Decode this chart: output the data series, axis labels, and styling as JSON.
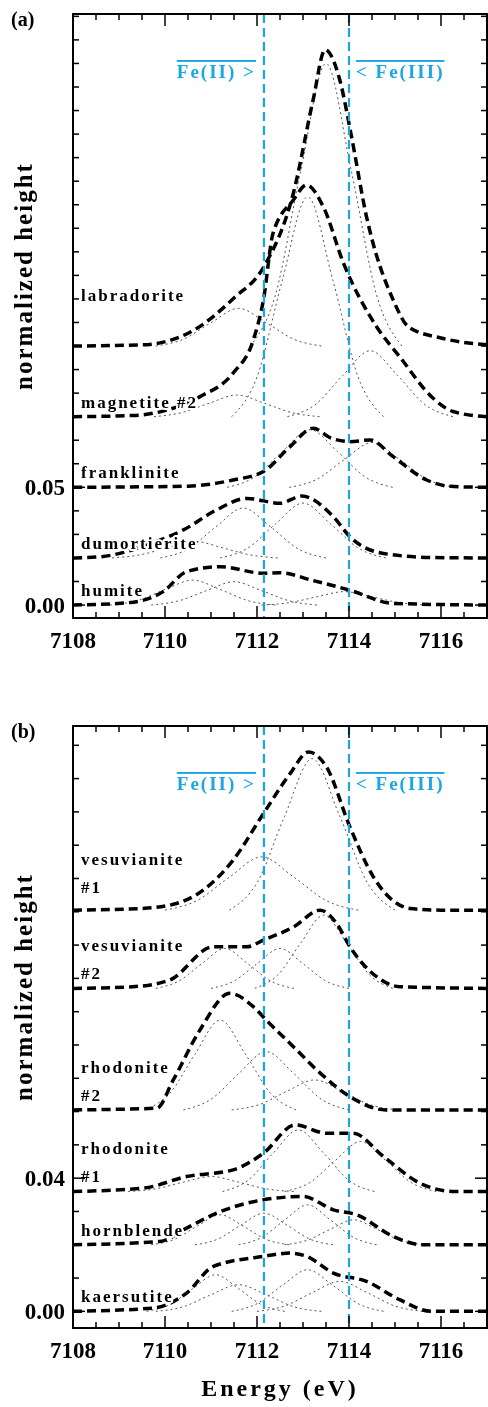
{
  "chart_data": [
    {
      "type": "line",
      "title": "(a)",
      "ylabel": "normalized height",
      "xlim": [
        7108,
        7117
      ],
      "xticks": [
        7108,
        {
          "value": 7108.5,
          "label": null
        },
        {
          "value": 7109,
          "label": null
        },
        {
          "value": 7109.5,
          "label": null
        },
        7110,
        {
          "value": 7110.5,
          "label": null
        },
        {
          "value": 7111,
          "label": null
        },
        {
          "value": 7111.5,
          "label": null
        },
        7112,
        {
          "value": 7112.5,
          "label": null
        },
        {
          "value": 7113,
          "label": null
        },
        {
          "value": 7113.5,
          "label": null
        },
        7114,
        {
          "value": 7114.5,
          "label": null
        },
        {
          "value": 7115,
          "label": null
        },
        {
          "value": 7115.5,
          "label": null
        },
        7116,
        {
          "value": 7116.5,
          "label": null
        }
      ],
      "ylim": [
        -0.0055,
        0.251
      ],
      "yticks": [
        {
          "value": 0,
          "label": "0.00"
        },
        {
          "value": 0.01,
          "label": null
        },
        {
          "value": 0.02,
          "label": null
        },
        {
          "value": 0.03,
          "label": null
        },
        {
          "value": 0.04,
          "label": null
        },
        {
          "value": 0.05,
          "label": "0.05"
        },
        {
          "value": 0.06,
          "label": null
        },
        {
          "value": 0.07,
          "label": null
        },
        {
          "value": 0.08,
          "label": null
        },
        {
          "value": 0.09,
          "label": null
        },
        {
          "value": 0.1,
          "label": null
        },
        {
          "value": 0.11,
          "label": null
        },
        {
          "value": 0.12,
          "label": null
        },
        {
          "value": 0.13,
          "label": null
        },
        {
          "value": 0.14,
          "label": null
        },
        {
          "value": 0.15,
          "label": null
        },
        {
          "value": 0.16,
          "label": null
        },
        {
          "value": 0.17,
          "label": null
        },
        {
          "value": 0.18,
          "label": null
        },
        {
          "value": 0.19,
          "label": null
        },
        {
          "value": 0.2,
          "label": null
        },
        {
          "value": 0.21,
          "label": null
        },
        {
          "value": 0.22,
          "label": null
        },
        {
          "value": 0.23,
          "label": null
        },
        {
          "value": 0.24,
          "label": null
        },
        {
          "value": 0.25,
          "label": null
        }
      ],
      "ref_lines": [
        {
          "axis": "x",
          "value": 7112.15,
          "color": "#1aa7e0",
          "line_style": "dashed"
        },
        {
          "axis": "x",
          "value": 7114.0,
          "color": "#1aa7e0",
          "line_style": "dashed"
        }
      ],
      "annotations": [
        "Fe(II) >",
        "< Fe(III)"
      ],
      "series": [
        {
          "name": "labradorite",
          "color": "#000000",
          "line_style": "dashed",
          "x": [
            7108,
            7109.5,
            7110.04,
            7110.6,
            7111.5,
            7112.15,
            7112.79,
            7113.22,
            7113.48,
            7113.8,
            7114.04,
            7114.38,
            7114.96,
            7115.3,
            7116,
            7117
          ],
          "values": [
            0.11,
            0.1105,
            0.112,
            0.1164,
            0.1304,
            0.1437,
            0.1749,
            0.2145,
            0.2358,
            0.223,
            0.2004,
            0.165,
            0.1296,
            0.118,
            0.1134,
            0.1105
          ]
        },
        {
          "name": "magnetite #2",
          "color": "#000000",
          "line_style": "dashed",
          "x": [
            7108,
            7109.3,
            7110.04,
            7110.76,
            7111.48,
            7111.92,
            7112.14,
            7112.35,
            7112.79,
            7113.08,
            7113.44,
            7113.88,
            7114.6,
            7115.1,
            7115.83,
            7116.26,
            7117
          ],
          "values": [
            0.08,
            0.0805,
            0.0828,
            0.0885,
            0.0985,
            0.1126,
            0.1296,
            0.158,
            0.172,
            0.1784,
            0.1692,
            0.1452,
            0.1182,
            0.1055,
            0.0878,
            0.0822,
            0.08
          ]
        },
        {
          "name": "franklinite",
          "color": "#000000",
          "line_style": "dashed",
          "x": [
            7108,
            7110.5,
            7111.48,
            7112.14,
            7112.72,
            7113.22,
            7113.6,
            7114.02,
            7114.46,
            7114.96,
            7115.69,
            7116.2,
            7117
          ],
          "values": [
            0.05,
            0.0505,
            0.0531,
            0.0567,
            0.0673,
            0.0751,
            0.071,
            0.0694,
            0.0701,
            0.063,
            0.0531,
            0.0504,
            0.05
          ]
        },
        {
          "name": "dumortierite",
          "color": "#000000",
          "line_style": "dashed",
          "x": [
            7108,
            7108.59,
            7109.67,
            7110.4,
            7111.12,
            7111.78,
            7112.5,
            7112.97,
            7113.66,
            7114.02,
            7114.75,
            7115.8,
            7117
          ],
          "values": [
            0.02,
            0.0205,
            0.026,
            0.0319,
            0.0404,
            0.0453,
            0.0432,
            0.0463,
            0.0375,
            0.029,
            0.0219,
            0.0202,
            0.02
          ]
        },
        {
          "name": "humite",
          "color": "#000000",
          "line_style": "dashed",
          "x": [
            7108,
            7109.2,
            7109.96,
            7110.47,
            7111.2,
            7112.14,
            7112.5,
            7113.2,
            7114,
            7114.96,
            7117
          ],
          "values": [
            0,
            0.001,
            0.0057,
            0.0142,
            0.0163,
            0.0135,
            0.0137,
            0.0105,
            0.0064,
            0.0007,
            0
          ]
        },
        {
          "color": "#555555",
          "line_style": "dotted",
          "x": [
            7109.8,
            7110.4,
            7111,
            7111.6,
            7112.2,
            7112.8,
            7113.4
          ],
          "values": [
            0.11,
            0.1129,
            0.1199,
            0.126,
            0.1199,
            0.1129,
            0.11
          ]
        },
        {
          "color": "#555555",
          "line_style": "dotted",
          "x": [
            7111.85,
            7112.4,
            7112.95,
            7113.5,
            7114.05,
            7114.6,
            7115.15
          ],
          "values": [
            0.11,
            0.1316,
            0.1844,
            0.23,
            0.1844,
            0.1316,
            0.11
          ]
        },
        {
          "color": "#555555",
          "line_style": "dotted",
          "x": [
            7109.76,
            7110.36,
            7110.96,
            7111.56,
            7112.16,
            7112.76,
            7113.36
          ],
          "values": [
            0.08,
            0.0817,
            0.0857,
            0.0892,
            0.0857,
            0.0817,
            0.08
          ]
        },
        {
          "color": "#555555",
          "line_style": "dotted",
          "x": [
            7111.45,
            7112,
            7112.55,
            7113.1,
            7113.65,
            7114.2,
            7114.75
          ],
          "values": [
            0.08,
            0.0968,
            0.1379,
            0.1734,
            0.1379,
            0.0968,
            0.08
          ]
        },
        {
          "color": "#555555",
          "line_style": "dotted",
          "x": [
            7112.66,
            7113.26,
            7113.86,
            7114.46,
            7115.06,
            7115.66,
            7116.26
          ],
          "values": [
            0.08,
            0.085,
            0.0974,
            0.108,
            0.0974,
            0.085,
            0.08
          ]
        },
        {
          "color": "#555555",
          "line_style": "dotted",
          "x": [
            7111.35,
            7111.95,
            7112.55,
            7113.15,
            7113.75,
            7114.35,
            7114.95
          ],
          "values": [
            0.05,
            0.0544,
            0.0652,
            0.0745,
            0.0652,
            0.0544,
            0.05
          ]
        },
        {
          "color": "#555555",
          "line_style": "dotted",
          "x": [
            7112.7,
            7113.3,
            7113.9,
            7114.5,
            7115.1,
            7115.7,
            7116.3
          ],
          "values": [
            0.05,
            0.0534,
            0.0618,
            0.069,
            0.0618,
            0.0534,
            0.05
          ]
        },
        {
          "color": "#555555",
          "line_style": "dotted",
          "x": [
            7108.85,
            7109.45,
            7110.05,
            7110.65,
            7111.25,
            7111.85,
            7112.45
          ],
          "values": [
            0.02,
            0.0213,
            0.0243,
            0.027,
            0.0243,
            0.0213,
            0.02
          ]
        },
        {
          "color": "#555555",
          "line_style": "dotted",
          "x": [
            7109.9,
            7110.5,
            7111.1,
            7111.7,
            7112.3,
            7112.9,
            7113.5
          ],
          "values": [
            0.02,
            0.0238,
            0.0331,
            0.0412,
            0.0331,
            0.0238,
            0.02
          ]
        },
        {
          "color": "#555555",
          "line_style": "dotted",
          "x": [
            7111.2,
            7111.8,
            7112.4,
            7113,
            7113.6,
            7114.2,
            7114.8
          ],
          "values": [
            0.02,
            0.0242,
            0.0344,
            0.0433,
            0.0344,
            0.0242,
            0.02
          ]
        },
        {
          "color": "#555555",
          "line_style": "dotted",
          "x": [
            7108.8,
            7109.4,
            7110,
            7110.6,
            7111.2,
            7111.8,
            7112.4
          ],
          "values": [
            0,
            0.0019,
            0.0066,
            0.0106,
            0.0066,
            0.0019,
            0
          ]
        },
        {
          "color": "#555555",
          "line_style": "dotted",
          "x": [
            7109.7,
            7110.3,
            7110.9,
            7111.5,
            7112.1,
            7112.7,
            7113.3
          ],
          "values": [
            0,
            0.0018,
            0.0061,
            0.0099,
            0.0061,
            0.0018,
            0
          ]
        },
        {
          "color": "#555555",
          "line_style": "dotted",
          "x": [
            7112.1,
            7112.7,
            7113.3,
            7113.9,
            7114.5,
            7115.1,
            7115.7
          ],
          "values": [
            0,
            0.001,
            0.0035,
            0.0057,
            0.0035,
            0.001,
            0
          ]
        }
      ]
    },
    {
      "type": "line",
      "title": "(b)",
      "xlabel": "Energy (eV)",
      "ylabel": "normalized height",
      "xlim": [
        7108,
        7117
      ],
      "xticks": [
        7108,
        {
          "value": 7108.5,
          "label": null
        },
        {
          "value": 7109,
          "label": null
        },
        {
          "value": 7109.5,
          "label": null
        },
        7110,
        {
          "value": 7110.5,
          "label": null
        },
        {
          "value": 7111,
          "label": null
        },
        {
          "value": 7111.5,
          "label": null
        },
        7112,
        {
          "value": 7112.5,
          "label": null
        },
        {
          "value": 7113,
          "label": null
        },
        {
          "value": 7113.5,
          "label": null
        },
        7114,
        {
          "value": 7114.5,
          "label": null
        },
        {
          "value": 7115,
          "label": null
        },
        {
          "value": 7115.5,
          "label": null
        },
        7116,
        {
          "value": 7116.5,
          "label": null
        }
      ],
      "ylim": [
        -0.005,
        0.1758
      ],
      "yticks": [
        {
          "value": 0,
          "label": "0.00"
        },
        {
          "value": 0.01,
          "label": null
        },
        {
          "value": 0.02,
          "label": null
        },
        {
          "value": 0.03,
          "label": null
        },
        {
          "value": 0.04,
          "label": "0.04"
        },
        {
          "value": 0.05,
          "label": null
        },
        {
          "value": 0.06,
          "label": null
        },
        {
          "value": 0.07,
          "label": null
        },
        {
          "value": 0.08,
          "label": null
        },
        {
          "value": 0.09,
          "label": null
        },
        {
          "value": 0.1,
          "label": null
        },
        {
          "value": 0.11,
          "label": null
        },
        {
          "value": 0.12,
          "label": null
        },
        {
          "value": 0.13,
          "label": null
        },
        {
          "value": 0.14,
          "label": null
        },
        {
          "value": 0.15,
          "label": null
        },
        {
          "value": 0.16,
          "label": null
        },
        {
          "value": 0.17,
          "label": null
        }
      ],
      "ref_lines": [
        {
          "axis": "x",
          "value": 7112.15,
          "color": "#1aa7e0",
          "line_style": "dashed"
        },
        {
          "axis": "x",
          "value": 7114.0,
          "color": "#1aa7e0",
          "line_style": "dashed"
        }
      ],
      "annotations": [
        "Fe(II) >",
        "< Fe(III)"
      ],
      "series": [
        {
          "name": "vesuvianite #1",
          "color": "#000000",
          "line_style": "dashed",
          "x": [
            7108,
            7109.5,
            7110.25,
            7110.83,
            7111.48,
            7112.14,
            7112.72,
            7113.12,
            7113.51,
            7114.02,
            7114.53,
            7115.33,
            7116,
            7117
          ],
          "values": [
            0.1205,
            0.121,
            0.1225,
            0.1265,
            0.1355,
            0.1495,
            0.1615,
            0.168,
            0.1635,
            0.1455,
            0.1305,
            0.121,
            0.1205,
            0.1205
          ]
        },
        {
          "name": "vesuvianite #2",
          "color": "#000000",
          "line_style": "dashed",
          "x": [
            7108,
            7109.3,
            7110.1,
            7111.05,
            7111.78,
            7112.14,
            7112.8,
            7113.37,
            7113.73,
            7114.02,
            7114.6,
            7115.1,
            7117
          ],
          "values": [
            0.097,
            0.0975,
            0.0995,
            0.1095,
            0.1095,
            0.1115,
            0.1155,
            0.1205,
            0.1165,
            0.1095,
            0.1005,
            0.0975,
            0.097
          ]
        },
        {
          "name": "rhodonite #2",
          "color": "#000000",
          "line_style": "dashed",
          "x": [
            7108,
            7109.82,
            7110.18,
            7110.76,
            7111.41,
            7111.92,
            7112.2,
            7112.79,
            7113.3,
            7114.02,
            7114.8,
            7117
          ],
          "values": [
            0.0605,
            0.061,
            0.0695,
            0.0845,
            0.0955,
            0.0915,
            0.0875,
            0.0795,
            0.0725,
            0.0645,
            0.0605,
            0.0605
          ]
        },
        {
          "name": "rhodonite #1",
          "color": "#000000",
          "line_style": "dashed",
          "x": [
            7108,
            7109.53,
            7110.47,
            7111.48,
            7112.14,
            7112.83,
            7113.51,
            7114.09,
            7114.75,
            7115.54,
            7116.3,
            7117
          ],
          "values": [
            0.036,
            0.037,
            0.0405,
            0.0425,
            0.0475,
            0.056,
            0.0535,
            0.0535,
            0.0465,
            0.0385,
            0.036,
            0.036
          ]
        },
        {
          "name": "hornblende",
          "color": "#000000",
          "line_style": "dashed",
          "x": [
            7108,
            7109.89,
            7110.47,
            7111.12,
            7112.14,
            7113,
            7113.66,
            7114.17,
            7114.96,
            7115.6,
            7117
          ],
          "values": [
            0.02,
            0.021,
            0.025,
            0.0295,
            0.0335,
            0.0345,
            0.0305,
            0.029,
            0.0225,
            0.02,
            0.02
          ]
        },
        {
          "name": "kaersutite",
          "color": "#000000",
          "line_style": "dashed",
          "x": [
            7108,
            7109.75,
            7110.47,
            7111.05,
            7112.14,
            7112.72,
            7113.08,
            7113.66,
            7114.38,
            7115.1,
            7115.8,
            7117
          ],
          "values": [
            0,
            0.001,
            0.0055,
            0.0135,
            0.0165,
            0.0175,
            0.0165,
            0.0115,
            0.009,
            0.0035,
            0,
            0
          ]
        },
        {
          "color": "#555555",
          "line_style": "dotted",
          "x": [
            7110,
            7110.7,
            7111.4,
            7112.1,
            7112.8,
            7113.5,
            7114.2
          ],
          "values": [
            0.1205,
            0.1234,
            0.1304,
            0.1365,
            0.1304,
            0.1234,
            0.1205
          ]
        },
        {
          "color": "#555555",
          "line_style": "dotted",
          "x": [
            7111.4,
            7112,
            7112.6,
            7113.2,
            7113.8,
            7114.4,
            7115
          ],
          "values": [
            0.1205,
            0.1287,
            0.1487,
            0.166,
            0.1487,
            0.1287,
            0.1205
          ]
        },
        {
          "color": "#555555",
          "line_style": "dotted",
          "x": [
            7109.8,
            7110.3,
            7110.8,
            7111.3,
            7111.8,
            7112.3,
            7112.8
          ],
          "values": [
            0.097,
            0.0992,
            0.1044,
            0.109,
            0.1044,
            0.0992,
            0.097
          ]
        },
        {
          "color": "#555555",
          "line_style": "dotted",
          "x": [
            7111,
            7111.5,
            7112,
            7112.5,
            7113,
            7113.5,
            7114
          ],
          "values": [
            0.097,
            0.0992,
            0.1044,
            0.109,
            0.1044,
            0.0992,
            0.097
          ]
        },
        {
          "color": "#555555",
          "line_style": "dotted",
          "x": [
            7111.95,
            7112.45,
            7112.95,
            7113.45,
            7113.95,
            7114.45,
            7114.95
          ],
          "values": [
            0.097,
            0.101,
            0.1106,
            0.119,
            0.1106,
            0.101,
            0.097
          ]
        },
        {
          "color": "#555555",
          "line_style": "dotted",
          "x": [
            7109.55,
            7110.1,
            7110.65,
            7111.2,
            7111.75,
            7112.3,
            7112.85
          ],
          "values": [
            0.0605,
            0.0654,
            0.0772,
            0.0875,
            0.0772,
            0.0654,
            0.0605
          ]
        },
        {
          "color": "#555555",
          "line_style": "dotted",
          "x": [
            7110.4,
            7111,
            7111.6,
            7112.2,
            7112.8,
            7113.4,
            7114
          ],
          "values": [
            0.0605,
            0.0637,
            0.0714,
            0.078,
            0.0714,
            0.0637,
            0.0605
          ]
        },
        {
          "color": "#555555",
          "line_style": "dotted",
          "x": [
            7111.45,
            7112.05,
            7112.65,
            7113.25,
            7113.85,
            7114.45,
            7115.05
          ],
          "values": [
            0.0605,
            0.0621,
            0.0661,
            0.0695,
            0.0661,
            0.0621,
            0.0605
          ]
        },
        {
          "color": "#555555",
          "line_style": "dotted",
          "x": [
            7109.2,
            7109.8,
            7110.4,
            7111,
            7111.6,
            7112.2,
            7112.8
          ],
          "values": [
            0.036,
            0.0368,
            0.0388,
            0.0405,
            0.0388,
            0.0368,
            0.036
          ]
        },
        {
          "color": "#555555",
          "line_style": "dotted",
          "x": [
            7111.25,
            7111.8,
            7112.35,
            7112.9,
            7113.45,
            7114,
            7114.55
          ],
          "values": [
            0.036,
            0.0393,
            0.0475,
            0.0545,
            0.0475,
            0.0393,
            0.036
          ]
        },
        {
          "color": "#555555",
          "line_style": "dotted",
          "x": [
            7112.6,
            7113.15,
            7113.7,
            7114.25,
            7114.8,
            7115.35,
            7115.9
          ],
          "values": [
            0.036,
            0.0387,
            0.0453,
            0.051,
            0.0453,
            0.0387,
            0.036
          ]
        },
        {
          "color": "#555555",
          "line_style": "dotted",
          "x": [
            7109.7,
            7110.2,
            7110.7,
            7111.2,
            7111.7,
            7112.2,
            7112.7
          ],
          "values": [
            0.02,
            0.0216,
            0.0256,
            0.029,
            0.0256,
            0.0216,
            0.02
          ]
        },
        {
          "color": "#555555",
          "line_style": "dotted",
          "x": [
            7110.65,
            7111.15,
            7111.65,
            7112.15,
            7112.65,
            7113.15,
            7113.65
          ],
          "values": [
            0.02,
            0.0217,
            0.0259,
            0.0295,
            0.0259,
            0.0217,
            0.02
          ]
        },
        {
          "color": "#555555",
          "line_style": "dotted",
          "x": [
            7111.6,
            7112.1,
            7112.6,
            7113.1,
            7113.6,
            7114.1,
            7114.6
          ],
          "values": [
            0.02,
            0.0222,
            0.0274,
            0.032,
            0.0274,
            0.0222,
            0.02
          ]
        },
        {
          "color": "#555555",
          "line_style": "dotted",
          "x": [
            7112.6,
            7113.1,
            7113.6,
            7114.1,
            7114.6,
            7115.1,
            7115.6
          ],
          "values": [
            0.02,
            0.0214,
            0.0247,
            0.0275,
            0.0247,
            0.0214,
            0.02
          ]
        },
        {
          "color": "#555555",
          "line_style": "dotted",
          "x": [
            7109.6,
            7110.1,
            7110.6,
            7111.1,
            7111.6,
            7112.1,
            7112.6
          ],
          "values": [
            0,
            0.002,
            0.0068,
            0.011,
            0.0068,
            0.002,
            0
          ]
        },
        {
          "color": "#555555",
          "line_style": "dotted",
          "x": [
            7109.8,
            7110.4,
            7111,
            7111.6,
            7112.2,
            7112.8,
            7113.4
          ],
          "values": [
            0,
            0.0014,
            0.005,
            0.008,
            0.005,
            0.0014,
            0
          ]
        },
        {
          "color": "#555555",
          "line_style": "dotted",
          "x": [
            7111.45,
            7112,
            7112.55,
            7113.1,
            7113.65,
            7114.2,
            7114.75
          ],
          "values": [
            0,
            0.0023,
            0.0078,
            0.0125,
            0.0078,
            0.0023,
            0
          ]
        },
        {
          "color": "#555555",
          "line_style": "dotted",
          "x": [
            7112,
            7112.6,
            7113.2,
            7113.8,
            7114.4,
            7115,
            7115.6
          ],
          "values": [
            0,
            0.0016,
            0.0056,
            0.009,
            0.0056,
            0.0016,
            0
          ]
        }
      ]
    }
  ]
}
